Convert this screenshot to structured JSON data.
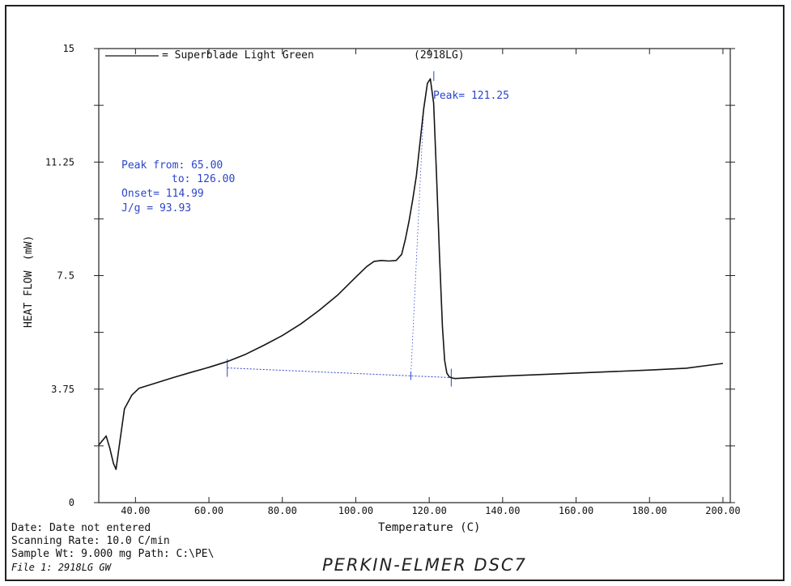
{
  "chart_data": {
    "type": "line",
    "legend_text": "= Superblade Light Green",
    "sample_code": "(2918LG)",
    "ylabel": "HEAT FLOW",
    "ylabel_unit": "(mW)",
    "xlabel": "Temperature (C)",
    "xlim": [
      30,
      202
    ],
    "ylim": [
      0,
      15
    ],
    "x_ticks": [
      "40.00",
      "60.00",
      "80.00",
      "100.00",
      "120.00",
      "140.00",
      "160.00",
      "180.00",
      "200.00"
    ],
    "y_ticks": [
      "0",
      "3.75",
      "7.5",
      "11.25",
      "15"
    ],
    "series": [
      {
        "color": "#151515",
        "x": [
          30,
          32,
          33,
          34,
          34.7,
          35.5,
          37,
          39,
          41,
          45,
          50,
          55,
          60,
          65,
          70,
          75,
          80,
          85,
          90,
          95,
          100,
          103,
          105,
          107,
          109,
          111,
          112.5,
          113.5,
          114.5,
          115.5,
          116.5,
          117.5,
          118.5,
          119.5,
          120.3,
          121.2,
          122.0,
          122.8,
          123.6,
          124.2,
          124.8,
          125.5,
          126.2,
          127,
          130,
          140,
          150,
          160,
          170,
          180,
          190,
          200
        ],
        "y": [
          1.9,
          2.2,
          1.8,
          1.3,
          1.1,
          1.8,
          3.1,
          3.55,
          3.78,
          3.93,
          4.12,
          4.3,
          4.47,
          4.66,
          4.9,
          5.2,
          5.52,
          5.9,
          6.35,
          6.85,
          7.45,
          7.8,
          7.97,
          8.0,
          7.98,
          8.0,
          8.2,
          8.7,
          9.3,
          10.0,
          10.8,
          11.9,
          13.0,
          13.85,
          14.0,
          13.2,
          10.8,
          8.2,
          5.8,
          4.7,
          4.28,
          4.15,
          4.12,
          4.1,
          4.12,
          4.18,
          4.23,
          4.28,
          4.33,
          4.38,
          4.44,
          4.6
        ]
      }
    ],
    "annotations": {
      "peak_label": "Peak= 121.25",
      "peak_from": "Peak from: 65.00",
      "peak_to": "to: 126.00",
      "onset": "Onset= 114.99",
      "jg": "J/g = 93.93",
      "peak_x": 121.25,
      "peak_from_x": 65.0,
      "peak_to_x": 126.0,
      "onset_x": 114.99,
      "baseline_y_start": 4.45,
      "baseline_y_end": 4.13
    }
  },
  "footer": {
    "date_line": "Date: Date not entered",
    "rate_line": "Scanning Rate:  10.0 C/min",
    "weight_line": "Sample Wt:   9.000 mg Path: C:\\PE\\",
    "file_line": "File 1: 2918LG     GW",
    "instrument": "PERKIN-ELMER DSC7"
  },
  "colors": {
    "curve": "#151515",
    "annotation": "#2b45c9",
    "axis": "#222222"
  }
}
